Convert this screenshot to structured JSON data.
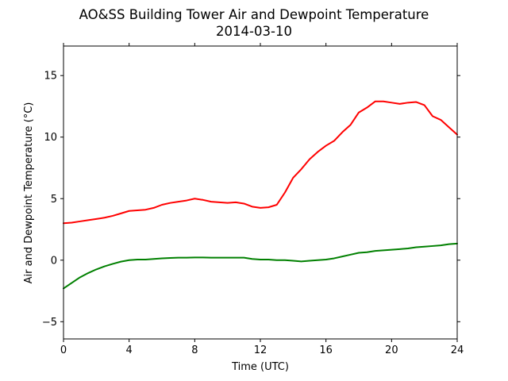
{
  "chart_data": {
    "type": "line",
    "title": "AO&SS Building Tower Air and Dewpoint Temperature",
    "subtitle": "2014-03-10",
    "xlabel": "Time (UTC)",
    "ylabel": "Air and Dewpoint Temperature (°C)",
    "xlim": [
      0,
      24
    ],
    "ylim": [
      -6.4,
      17.4
    ],
    "xticks": [
      0,
      4,
      8,
      12,
      16,
      20,
      24
    ],
    "yticks": [
      -5,
      0,
      5,
      10,
      15
    ],
    "xtick_labels": [
      "0",
      "4",
      "8",
      "12",
      "16",
      "20",
      "24"
    ],
    "ytick_labels": [
      "−5",
      "0",
      "5",
      "10",
      "15"
    ],
    "grid": false,
    "series": [
      {
        "color": "#ff0000",
        "x": [
          0,
          0.5,
          1,
          1.5,
          2,
          2.5,
          3,
          3.5,
          4,
          4.5,
          5,
          5.5,
          6,
          6.5,
          7,
          7.5,
          8,
          8.5,
          9,
          9.5,
          10,
          10.5,
          11,
          11.5,
          12,
          12.5,
          13,
          13.5,
          14,
          14.5,
          15,
          15.5,
          16,
          16.5,
          17,
          17.5,
          18,
          18.5,
          19,
          19.5,
          20,
          20.5,
          21,
          21.5,
          22,
          22.5,
          23,
          23.5,
          24
        ],
        "y": [
          3.0,
          3.05,
          3.15,
          3.25,
          3.35,
          3.45,
          3.6,
          3.8,
          4.0,
          4.05,
          4.1,
          4.25,
          4.5,
          4.65,
          4.75,
          4.85,
          5.0,
          4.9,
          4.75,
          4.7,
          4.65,
          4.7,
          4.6,
          4.35,
          4.25,
          4.3,
          4.5,
          5.5,
          6.7,
          7.4,
          8.2,
          8.8,
          9.3,
          9.7,
          10.4,
          11.0,
          12.0,
          12.4,
          12.9,
          12.9,
          12.8,
          12.7,
          12.8,
          12.85,
          12.6,
          11.7,
          11.4,
          10.8,
          10.2
        ]
      },
      {
        "color": "#008000",
        "x": [
          0,
          0.5,
          1,
          1.5,
          2,
          2.5,
          3,
          3.5,
          4,
          4.5,
          5,
          5.5,
          6,
          6.5,
          7,
          7.5,
          8,
          8.5,
          9,
          9.5,
          10,
          10.5,
          11,
          11.5,
          12,
          12.5,
          13,
          13.5,
          14,
          14.5,
          15,
          15.5,
          16,
          16.5,
          17,
          17.5,
          18,
          18.5,
          19,
          19.5,
          20,
          20.5,
          21,
          21.5,
          22,
          22.5,
          23,
          23.5,
          24
        ],
        "y": [
          -2.3,
          -1.85,
          -1.4,
          -1.05,
          -0.75,
          -0.5,
          -0.3,
          -0.12,
          0.0,
          0.05,
          0.05,
          0.1,
          0.15,
          0.18,
          0.2,
          0.2,
          0.22,
          0.22,
          0.2,
          0.2,
          0.2,
          0.2,
          0.2,
          0.1,
          0.05,
          0.05,
          0.0,
          0.0,
          -0.05,
          -0.1,
          -0.05,
          0.0,
          0.05,
          0.15,
          0.3,
          0.45,
          0.6,
          0.65,
          0.75,
          0.8,
          0.85,
          0.9,
          0.95,
          1.05,
          1.1,
          1.15,
          1.2,
          1.3,
          1.35
        ]
      }
    ]
  }
}
